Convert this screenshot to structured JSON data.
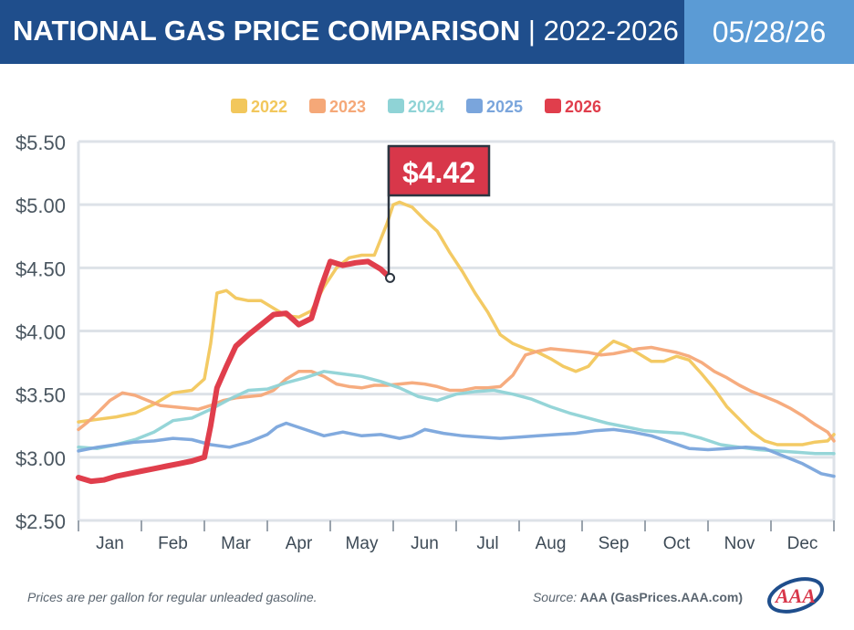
{
  "header": {
    "title_bold": "NATIONAL GAS PRICE COMPARISON",
    "title_rest": " | 2022-2026",
    "date": "05/28/26"
  },
  "footer": {
    "note": "Prices are per gallon for regular unleaded gasoline.",
    "source_label": "Source:",
    "source_value": " AAA (GasPrices.AAA.com)"
  },
  "logo": {
    "text": "AAA",
    "icon": "aaa-logo"
  },
  "colors": {
    "header_bg": "#1f4e8c",
    "date_bg": "#5b9bd5",
    "grid": "#dfe3e8",
    "callout": "#d8374a"
  },
  "chart_data": {
    "type": "line",
    "title": "NATIONAL GAS PRICE COMPARISON | 2022-2026",
    "ylim": [
      2.5,
      5.5
    ],
    "yticks": [
      "$5.50",
      "$5.00",
      "$4.50",
      "$4.00",
      "$3.50",
      "$3.00",
      "$2.50"
    ],
    "x_range": [
      1,
      13
    ],
    "months": [
      "Jan",
      "Feb",
      "Mar",
      "Apr",
      "May",
      "Jun",
      "Jul",
      "Aug",
      "Sep",
      "Oct",
      "Nov",
      "Dec"
    ],
    "grid": true,
    "legend_position": "top-center",
    "annotation": {
      "text": "$4.42",
      "x": 5.95,
      "y": 4.42,
      "series": "2026"
    },
    "series": [
      {
        "name": "2022",
        "color": "#f2c75c",
        "x": [
          1.0,
          1.3,
          1.6,
          1.9,
          2.2,
          2.5,
          2.8,
          3.0,
          3.1,
          3.2,
          3.35,
          3.5,
          3.7,
          3.9,
          4.1,
          4.3,
          4.5,
          4.7,
          4.9,
          5.1,
          5.3,
          5.5,
          5.7,
          5.9,
          6.0,
          6.1,
          6.2,
          6.3,
          6.5,
          6.7,
          6.9,
          7.1,
          7.3,
          7.5,
          7.7,
          7.9,
          8.1,
          8.3,
          8.5,
          8.7,
          8.9,
          9.1,
          9.3,
          9.5,
          9.7,
          9.9,
          10.1,
          10.3,
          10.5,
          10.7,
          10.9,
          11.1,
          11.3,
          11.5,
          11.7,
          11.9,
          12.1,
          12.3,
          12.5,
          12.7,
          12.9,
          13.0
        ],
        "y": [
          3.28,
          3.3,
          3.32,
          3.35,
          3.42,
          3.51,
          3.53,
          3.62,
          3.9,
          4.3,
          4.32,
          4.26,
          4.24,
          4.24,
          4.18,
          4.12,
          4.11,
          4.16,
          4.35,
          4.5,
          4.58,
          4.6,
          4.6,
          4.85,
          5.0,
          5.02,
          5.0,
          4.98,
          4.88,
          4.79,
          4.62,
          4.47,
          4.3,
          4.15,
          3.97,
          3.9,
          3.86,
          3.83,
          3.78,
          3.72,
          3.68,
          3.72,
          3.84,
          3.92,
          3.88,
          3.82,
          3.76,
          3.76,
          3.8,
          3.77,
          3.66,
          3.54,
          3.4,
          3.3,
          3.2,
          3.13,
          3.1,
          3.1,
          3.1,
          3.12,
          3.13,
          3.18
        ]
      },
      {
        "name": "2023",
        "color": "#f5a878",
        "x": [
          1.0,
          1.15,
          1.3,
          1.5,
          1.7,
          1.9,
          2.1,
          2.3,
          2.5,
          2.7,
          2.9,
          3.1,
          3.3,
          3.5,
          3.7,
          3.9,
          4.1,
          4.3,
          4.5,
          4.7,
          4.9,
          5.1,
          5.3,
          5.5,
          5.7,
          5.9,
          6.1,
          6.3,
          6.5,
          6.7,
          6.9,
          7.1,
          7.3,
          7.5,
          7.7,
          7.9,
          8.1,
          8.3,
          8.5,
          8.7,
          8.9,
          9.1,
          9.3,
          9.5,
          9.7,
          9.9,
          10.1,
          10.3,
          10.5,
          10.7,
          10.9,
          11.1,
          11.3,
          11.5,
          11.7,
          11.9,
          12.1,
          12.3,
          12.5,
          12.7,
          12.9,
          13.0
        ],
        "y": [
          3.22,
          3.28,
          3.35,
          3.45,
          3.51,
          3.49,
          3.45,
          3.41,
          3.4,
          3.39,
          3.38,
          3.41,
          3.45,
          3.47,
          3.48,
          3.49,
          3.53,
          3.62,
          3.68,
          3.68,
          3.64,
          3.58,
          3.56,
          3.55,
          3.57,
          3.57,
          3.58,
          3.59,
          3.58,
          3.56,
          3.53,
          3.53,
          3.55,
          3.55,
          3.56,
          3.65,
          3.81,
          3.84,
          3.86,
          3.85,
          3.84,
          3.83,
          3.81,
          3.82,
          3.84,
          3.86,
          3.87,
          3.85,
          3.83,
          3.8,
          3.75,
          3.68,
          3.63,
          3.57,
          3.52,
          3.48,
          3.44,
          3.39,
          3.33,
          3.26,
          3.2,
          3.13
        ]
      },
      {
        "name": "2024",
        "color": "#8fd3d6",
        "x": [
          1.0,
          1.3,
          1.6,
          1.9,
          2.2,
          2.5,
          2.8,
          3.1,
          3.4,
          3.7,
          4.0,
          4.3,
          4.6,
          4.9,
          5.2,
          5.5,
          5.8,
          6.1,
          6.4,
          6.7,
          7.0,
          7.3,
          7.6,
          7.9,
          8.2,
          8.5,
          8.8,
          9.1,
          9.4,
          9.7,
          10.0,
          10.3,
          10.6,
          10.9,
          11.2,
          11.5,
          11.8,
          12.1,
          12.4,
          12.7,
          13.0
        ],
        "y": [
          3.08,
          3.07,
          3.1,
          3.14,
          3.2,
          3.29,
          3.31,
          3.38,
          3.46,
          3.53,
          3.54,
          3.59,
          3.63,
          3.68,
          3.66,
          3.64,
          3.6,
          3.55,
          3.48,
          3.45,
          3.5,
          3.52,
          3.53,
          3.5,
          3.46,
          3.4,
          3.35,
          3.31,
          3.27,
          3.24,
          3.21,
          3.2,
          3.19,
          3.15,
          3.1,
          3.08,
          3.06,
          3.05,
          3.04,
          3.03,
          3.03
        ]
      },
      {
        "name": "2025",
        "color": "#7aa5dc",
        "x": [
          1.0,
          1.3,
          1.6,
          1.9,
          2.2,
          2.5,
          2.8,
          3.1,
          3.4,
          3.7,
          4.0,
          4.15,
          4.3,
          4.6,
          4.9,
          5.2,
          5.5,
          5.8,
          6.1,
          6.3,
          6.5,
          6.8,
          7.1,
          7.4,
          7.7,
          8.0,
          8.3,
          8.6,
          8.9,
          9.2,
          9.5,
          9.8,
          10.1,
          10.4,
          10.7,
          11.0,
          11.3,
          11.6,
          11.9,
          12.2,
          12.5,
          12.8,
          13.0
        ],
        "y": [
          3.05,
          3.08,
          3.1,
          3.12,
          3.13,
          3.15,
          3.14,
          3.1,
          3.08,
          3.12,
          3.18,
          3.24,
          3.27,
          3.22,
          3.17,
          3.2,
          3.17,
          3.18,
          3.15,
          3.17,
          3.22,
          3.19,
          3.17,
          3.16,
          3.15,
          3.16,
          3.17,
          3.18,
          3.19,
          3.21,
          3.22,
          3.2,
          3.17,
          3.12,
          3.07,
          3.06,
          3.07,
          3.08,
          3.07,
          3.01,
          2.95,
          2.87,
          2.85
        ]
      },
      {
        "name": "2026",
        "color": "#e03e4c",
        "x": [
          1.0,
          1.2,
          1.4,
          1.6,
          1.8,
          2.0,
          2.2,
          2.4,
          2.6,
          2.8,
          3.0,
          3.1,
          3.2,
          3.35,
          3.5,
          3.7,
          3.9,
          4.1,
          4.3,
          4.5,
          4.7,
          4.85,
          5.0,
          5.2,
          5.4,
          5.6,
          5.8,
          5.95
        ],
        "y": [
          2.84,
          2.81,
          2.82,
          2.85,
          2.87,
          2.89,
          2.91,
          2.93,
          2.95,
          2.97,
          3.0,
          3.25,
          3.55,
          3.72,
          3.88,
          3.97,
          4.05,
          4.13,
          4.14,
          4.05,
          4.1,
          4.34,
          4.55,
          4.52,
          4.54,
          4.55,
          4.49,
          4.42
        ]
      }
    ]
  }
}
